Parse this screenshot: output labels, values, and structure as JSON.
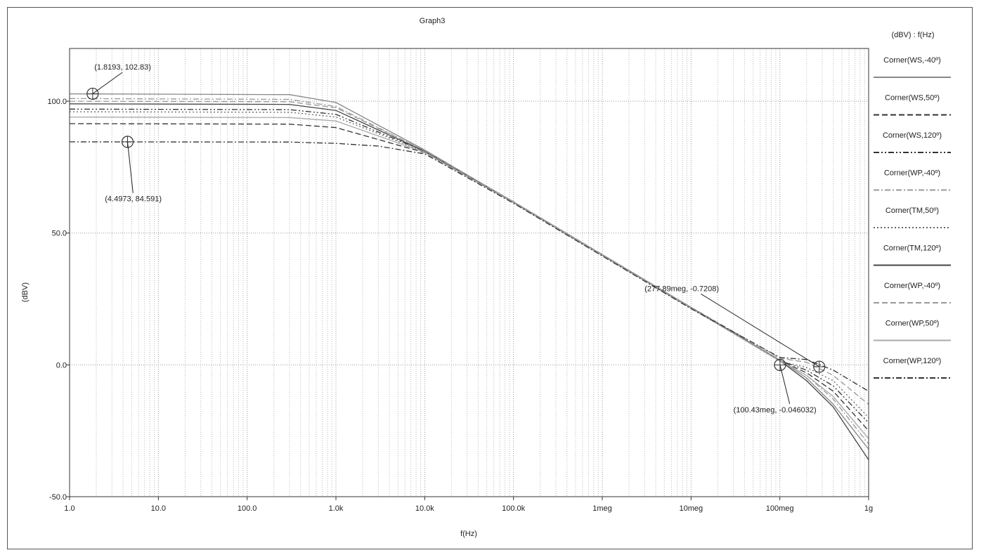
{
  "chart_data": {
    "type": "line",
    "title": "Graph3",
    "xlabel": "f(Hz)",
    "ylabel": "(dBV)",
    "x_scale": "log",
    "xlim": [
      1,
      1000000000
    ],
    "ylim": [
      -50,
      120
    ],
    "grid": true,
    "x_ticks": [
      {
        "value": 1,
        "label": "1.0"
      },
      {
        "value": 10,
        "label": "10.0"
      },
      {
        "value": 100,
        "label": "100.0"
      },
      {
        "value": 1000,
        "label": "1.0k"
      },
      {
        "value": 10000,
        "label": "10.0k"
      },
      {
        "value": 100000,
        "label": "100.0k"
      },
      {
        "value": 1000000,
        "label": "1meg"
      },
      {
        "value": 10000000,
        "label": "10meg"
      },
      {
        "value": 100000000,
        "label": "100meg"
      },
      {
        "value": 1000000000,
        "label": "1g"
      }
    ],
    "y_ticks": [
      {
        "value": 100,
        "label": "100.0"
      },
      {
        "value": 50,
        "label": "50.0"
      },
      {
        "value": 0,
        "label": "0.0"
      },
      {
        "value": -50,
        "label": "-50.0"
      }
    ],
    "legend_title": "(dBV) : f(Hz)",
    "legend_position": "right",
    "series": [
      {
        "name": "Corner(WS,-40º)",
        "dash": "solid",
        "color": "#888888",
        "x": [
          1,
          300,
          1000,
          10000,
          100000,
          1000000,
          10000000,
          100000000,
          200000000,
          400000000,
          1000000000
        ],
        "y": [
          102.8,
          102.5,
          99.5,
          81.5,
          61.8,
          41.8,
          21.8,
          1.8,
          -5,
          -15,
          -32
        ]
      },
      {
        "name": "Corner(WS,50º)",
        "dash": "dash",
        "color": "#333333",
        "x": [
          1,
          300,
          1000,
          10000,
          100000,
          1000000,
          10000000,
          100000000,
          200000000,
          400000000,
          1000000000
        ],
        "y": [
          91.5,
          91.3,
          90,
          80.5,
          61.5,
          41.5,
          21.5,
          1.5,
          -3,
          -10,
          -25
        ]
      },
      {
        "name": "Corner(WS,120º)",
        "dash": "dashdotdot",
        "color": "#333333",
        "x": [
          1,
          300,
          1000,
          10000,
          100000,
          1000000,
          10000000,
          100000000,
          200000000,
          400000000,
          1000000000
        ],
        "y": [
          97,
          96.8,
          95,
          81,
          61.6,
          41.6,
          21.6,
          1.6,
          -2,
          -8,
          -22
        ]
      },
      {
        "name": "Corner(WP,-40º)",
        "dash": "dashdot",
        "color": "#999999",
        "x": [
          1,
          300,
          1000,
          10000,
          100000,
          1000000,
          10000000,
          100000000,
          200000000,
          400000000,
          1000000000
        ],
        "y": [
          101,
          100.7,
          98,
          81.2,
          61.7,
          41.7,
          21.7,
          1.7,
          -4,
          -13,
          -30
        ]
      },
      {
        "name": "Corner(TM,50º)",
        "dash": "dot",
        "color": "#666666",
        "x": [
          1,
          300,
          1000,
          10000,
          100000,
          1000000,
          10000000,
          100000000,
          200000000,
          400000000,
          1000000000
        ],
        "y": [
          96,
          95.8,
          94,
          80.8,
          61.4,
          41.4,
          21.4,
          1.4,
          -1,
          -6,
          -20
        ]
      },
      {
        "name": "Corner(TM,120º)",
        "dash": "solid",
        "color": "#444444",
        "x": [
          1,
          300,
          1000,
          10000,
          100000,
          1000000,
          10000000,
          100000000,
          200000000,
          400000000,
          1000000000
        ],
        "y": [
          99,
          98.8,
          96.5,
          81,
          61.6,
          41.6,
          21.6,
          1.6,
          -6,
          -16,
          -36
        ]
      },
      {
        "name": "Corner(WP,-40º)",
        "dash": "dash",
        "color": "#999999",
        "x": [
          1,
          300,
          1000,
          10000,
          100000,
          1000000,
          10000000,
          100000000,
          200000000,
          400000000,
          1000000000
        ],
        "y": [
          100,
          99.8,
          97.5,
          81.2,
          61.9,
          41.9,
          21.9,
          2.5,
          1,
          -4,
          -15
        ]
      },
      {
        "name": "Corner(WP,50º)",
        "dash": "solid",
        "color": "#aaaaaa",
        "x": [
          1,
          300,
          1000,
          10000,
          100000,
          1000000,
          10000000,
          100000000,
          200000000,
          400000000,
          1000000000
        ],
        "y": [
          94,
          93.8,
          92.5,
          80.6,
          61.5,
          41.5,
          21.5,
          1.5,
          -4,
          -12,
          -28
        ]
      },
      {
        "name": "Corner(WP,120º)",
        "dash": "dashdot",
        "color": "#333333",
        "x": [
          1,
          300,
          1000,
          3000,
          10000,
          100000,
          1000000,
          10000000,
          100000000,
          200000000,
          400000000,
          1000000000
        ],
        "y": [
          84.6,
          84.5,
          84,
          83,
          80,
          61.3,
          41.3,
          21.3,
          2.8,
          2,
          -2,
          -10
        ]
      }
    ],
    "annotations": [
      {
        "x": 1.8193,
        "y": 102.83,
        "text": "(1.8193, 102.83)",
        "label_x": 1.9,
        "label_y": 112
      },
      {
        "x": 4.4973,
        "y": 84.591,
        "text": "(4.4973, 84.591)",
        "label_x": 2.5,
        "label_y": 62
      },
      {
        "x": 277890000,
        "y": -0.7208,
        "text": "(277.89meg, -0.7208)",
        "label_x": 3000000,
        "label_y": 28
      },
      {
        "x": 100430000,
        "y": -0.046032,
        "text": "(100.43meg, -0.046032)",
        "label_x": 30000000,
        "label_y": -18
      }
    ]
  }
}
